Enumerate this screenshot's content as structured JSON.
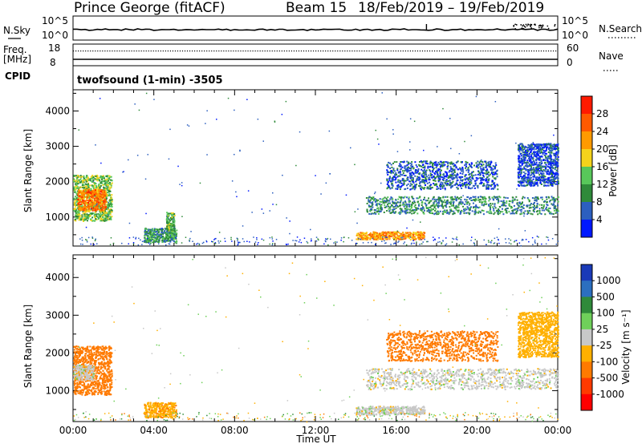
{
  "header": {
    "station": "Prince George (fitACF)",
    "beam": "Beam 15",
    "dates": "18/Feb/2019 – 19/Feb/2019"
  },
  "left_panel_labels": {
    "nsky": "N.Sky",
    "freq_line1": "Freq.",
    "freq_line2": "[MHz]",
    "cpid": "CPID",
    "nsky_ticks": [
      "10^5",
      "10^0"
    ],
    "freq_ticks": [
      "18",
      "8"
    ]
  },
  "right_panel_labels": {
    "nsearch": "N.Search",
    "nave": "Nave",
    "nsearch_ticks": [
      "10^5",
      "10^0"
    ],
    "nave_ticks": [
      "60",
      "0"
    ]
  },
  "cpid_text": "twofsound (1-min) -3505",
  "x_axis": {
    "label": "Time UT",
    "ticks": [
      "00:00",
      "04:00",
      "08:00",
      "12:00",
      "16:00",
      "20:00",
      "00:00"
    ]
  },
  "y_axis": {
    "label": "Slant Range [km]",
    "ticks": [
      "1000",
      "2000",
      "3000",
      "4000"
    ]
  },
  "colorbars": {
    "power": {
      "label": "Power [dB]",
      "ticks": [
        "4",
        "8",
        "12",
        "16",
        "20",
        "24",
        "28"
      ],
      "colors": [
        "#0018ff",
        "#2c5fbf",
        "#2f8a3a",
        "#58c75a",
        "#f5d31b",
        "#ff9a00",
        "#ff5a00",
        "#ff1a00"
      ]
    },
    "velocity": {
      "label": "Velocity [m s⁻¹]",
      "ticks": [
        "1000",
        "500",
        "100",
        "25",
        "-25",
        "-100",
        "-500",
        "-1000"
      ],
      "colors": [
        "#1a3ab8",
        "#2c6fbf",
        "#2f8a3a",
        "#6fd05a",
        "#c8c8c8",
        "#ffb000",
        "#ff7a00",
        "#ff3a00",
        "#ff0000"
      ]
    }
  },
  "chart_data": [
    {
      "type": "heatmap",
      "panel": "power",
      "xlabel": "Time UT",
      "ylabel": "Slant Range [km]",
      "xlim_hours": [
        0,
        24
      ],
      "ylim_km": [
        180,
        4600
      ],
      "colorbar_label": "Power [dB]",
      "colorbar_range": [
        0,
        32
      ],
      "regions": [
        {
          "t0": 0.0,
          "t1": 1.9,
          "r0": 900,
          "r1": 2200,
          "value": 14
        },
        {
          "t0": 0.2,
          "t1": 1.6,
          "r0": 1200,
          "r1": 1800,
          "value": 24
        },
        {
          "t0": 3.5,
          "t1": 5.1,
          "r0": 300,
          "r1": 700,
          "value": 10
        },
        {
          "t0": 4.6,
          "t1": 5.0,
          "r0": 400,
          "r1": 1150,
          "value": 12
        },
        {
          "t0": 14.0,
          "t1": 17.4,
          "r0": 380,
          "r1": 600,
          "value": 22
        },
        {
          "t0": 14.5,
          "t1": 24.0,
          "r0": 1100,
          "r1": 1600,
          "value": 9
        },
        {
          "t0": 15.5,
          "t1": 21.0,
          "r0": 1800,
          "r1": 2600,
          "value": 6
        },
        {
          "t0": 22.0,
          "t1": 24.0,
          "r0": 1900,
          "r1": 3100,
          "value": 5
        }
      ]
    },
    {
      "type": "heatmap",
      "panel": "velocity",
      "xlabel": "Time UT",
      "ylabel": "Slant Range [km]",
      "xlim_hours": [
        0,
        24
      ],
      "ylim_km": [
        180,
        4600
      ],
      "colorbar_label": "Velocity [m s⁻¹]",
      "colorbar_ticks": [
        1000,
        500,
        100,
        25,
        -25,
        -100,
        -500,
        -1000
      ],
      "regions": [
        {
          "t0": 0.0,
          "t1": 1.9,
          "r0": 900,
          "r1": 2200,
          "value": -200
        },
        {
          "t0": 0.0,
          "t1": 1.0,
          "r0": 1300,
          "r1": 1700,
          "value": 0
        },
        {
          "t0": 3.5,
          "t1": 5.1,
          "r0": 300,
          "r1": 700,
          "value": -80
        },
        {
          "t0": 14.0,
          "t1": 17.4,
          "r0": 380,
          "r1": 600,
          "value": 0
        },
        {
          "t0": 14.5,
          "t1": 24.0,
          "r0": 1050,
          "r1": 1600,
          "value": 0
        },
        {
          "t0": 15.5,
          "t1": 21.0,
          "r0": 1800,
          "r1": 2600,
          "value": -200
        },
        {
          "t0": 22.0,
          "t1": 24.0,
          "r0": 1900,
          "r1": 3100,
          "value": -60
        }
      ]
    }
  ]
}
